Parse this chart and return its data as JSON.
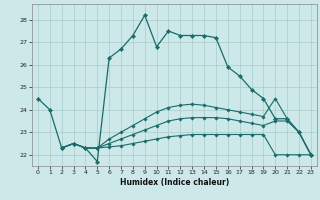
{
  "xlabel": "Humidex (Indice chaleur)",
  "bg_color": "#cce8e8",
  "grid_color": "#aacccc",
  "line_color": "#1a6b6b",
  "xlim": [
    -0.5,
    23.5
  ],
  "ylim": [
    21.5,
    28.7
  ],
  "yticks": [
    22,
    23,
    24,
    25,
    26,
    27,
    28
  ],
  "xticks": [
    0,
    1,
    2,
    3,
    4,
    5,
    6,
    7,
    8,
    9,
    10,
    11,
    12,
    13,
    14,
    15,
    16,
    17,
    18,
    19,
    20,
    21,
    22,
    23
  ],
  "line1_x": [
    0,
    1,
    2,
    3,
    4,
    5,
    6,
    7,
    8,
    9,
    10,
    11,
    12,
    13,
    14,
    15,
    16,
    17,
    18,
    19,
    20,
    21,
    22,
    23
  ],
  "line1_y": [
    24.5,
    24.0,
    22.3,
    22.5,
    22.3,
    21.7,
    26.3,
    26.7,
    27.3,
    28.2,
    26.8,
    27.5,
    27.3,
    27.3,
    27.3,
    27.2,
    25.9,
    25.5,
    24.9,
    24.5,
    23.6,
    23.6,
    23.0,
    22.0
  ],
  "line2_x": [
    2,
    3,
    4,
    5,
    6,
    7,
    8,
    9,
    10,
    11,
    12,
    13,
    14,
    15,
    16,
    17,
    18,
    19,
    20,
    21,
    22,
    23
  ],
  "line2_y": [
    22.3,
    22.5,
    22.3,
    22.3,
    22.35,
    22.4,
    22.5,
    22.6,
    22.7,
    22.8,
    22.85,
    22.9,
    22.9,
    22.9,
    22.9,
    22.9,
    22.9,
    22.9,
    22.0,
    22.0,
    22.0,
    22.0
  ],
  "line3_x": [
    2,
    3,
    4,
    5,
    6,
    7,
    8,
    9,
    10,
    11,
    12,
    13,
    14,
    15,
    16,
    17,
    18,
    19,
    20,
    21,
    22,
    23
  ],
  "line3_y": [
    22.3,
    22.5,
    22.3,
    22.3,
    22.5,
    22.7,
    22.9,
    23.1,
    23.3,
    23.5,
    23.6,
    23.65,
    23.65,
    23.65,
    23.6,
    23.5,
    23.4,
    23.3,
    23.5,
    23.5,
    23.0,
    22.0
  ],
  "line4_x": [
    2,
    3,
    4,
    5,
    6,
    7,
    8,
    9,
    10,
    11,
    12,
    13,
    14,
    15,
    16,
    17,
    18,
    19,
    20,
    21,
    22,
    23
  ],
  "line4_y": [
    22.3,
    22.5,
    22.3,
    22.3,
    22.7,
    23.0,
    23.3,
    23.6,
    23.9,
    24.1,
    24.2,
    24.25,
    24.2,
    24.1,
    24.0,
    23.9,
    23.8,
    23.7,
    24.5,
    23.6,
    23.0,
    22.0
  ]
}
